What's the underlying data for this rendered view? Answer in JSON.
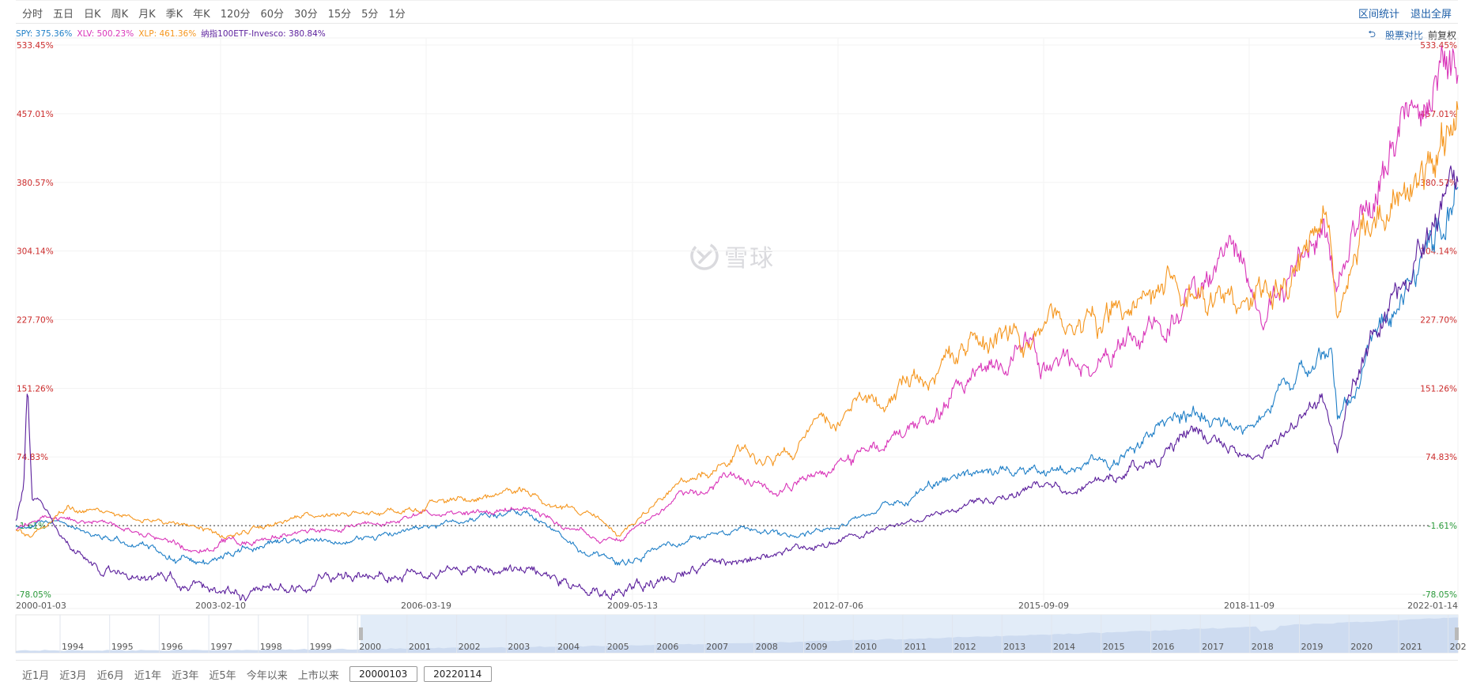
{
  "toolbar": {
    "periods": [
      "分时",
      "五日",
      "日K",
      "周K",
      "月K",
      "季K",
      "年K",
      "120分",
      "60分",
      "30分",
      "15分",
      "5分",
      "1分"
    ],
    "interval_stats": "区间统计",
    "exit_fullscreen": "退出全屏"
  },
  "legend": {
    "items": [
      {
        "label": "SPY: 375.36%",
        "color": "#1f7fc7"
      },
      {
        "label": "XLV: 500.23%",
        "color": "#d935b9"
      },
      {
        "label": "XLP: 461.36%",
        "color": "#f5961e"
      },
      {
        "label": "纳指100ETF-Invesco: 380.84%",
        "color": "#5b1f9c"
      }
    ],
    "compare": "股票对比",
    "adjust": "前复权"
  },
  "watermark": {
    "text": "雪球"
  },
  "bottom": {
    "ranges": [
      "近1月",
      "近3月",
      "近6月",
      "近1年",
      "近3年",
      "近5年",
      "今年以来",
      "上市以来"
    ],
    "start_date": "20000103",
    "end_date": "20220114"
  },
  "navigator": {
    "years": [
      "1994",
      "1995",
      "1996",
      "1997",
      "1998",
      "1999",
      "2000",
      "2001",
      "2002",
      "2003",
      "2004",
      "2005",
      "2006",
      "2007",
      "2008",
      "2009",
      "2010",
      "2011",
      "2012",
      "2013",
      "2014",
      "2015",
      "2016",
      "2017",
      "2018",
      "2019",
      "2020",
      "2021",
      "202"
    ],
    "selected_from": "2000",
    "selected_to": "2022"
  },
  "colors": {
    "positive": "#cc2b2b",
    "negative": "#2a9a3a",
    "baseline": "#333333"
  },
  "chart_data": {
    "type": "line",
    "title": "",
    "xlabel": "",
    "ylabel": "",
    "x_tick_labels": [
      "2000-01-03",
      "2003-02-10",
      "2006-03-19",
      "2009-05-13",
      "2012-07-06",
      "2015-09-09",
      "2018-11-09",
      "2022-01-14"
    ],
    "x_range": [
      "2000-01-03",
      "2022-01-14"
    ],
    "y_tick_labels": [
      "533.45%",
      "457.01%",
      "380.57%",
      "304.14%",
      "227.70%",
      "151.26%",
      "74.83%",
      "-1.61%",
      "-78.05%"
    ],
    "y_ticks": [
      533.45,
      457.01,
      380.57,
      304.14,
      227.7,
      151.26,
      74.83,
      -1.61,
      -78.05
    ],
    "ylim": [
      -78.05,
      533.45
    ],
    "baseline": -1.61,
    "baseline_label": "-1.61%",
    "grid": true,
    "series": [
      {
        "name": "SPY",
        "final": 375.36,
        "color": "#1f7fc7",
        "x": [
          2000.0,
          2000.7,
          2001.7,
          2002.8,
          2003.2,
          2004.0,
          2005.0,
          2006.0,
          2007.0,
          2007.8,
          2008.3,
          2008.8,
          2009.2,
          2010.0,
          2011.3,
          2011.7,
          2012.5,
          2013.5,
          2014.5,
          2015.6,
          2016.1,
          2017.0,
          2018.0,
          2018.9,
          2019.5,
          2020.1,
          2020.2,
          2020.6,
          2021.0,
          2021.6,
          2022.04
        ],
        "y": [
          -1,
          2,
          -20,
          -45,
          -35,
          -22,
          -18,
          -8,
          8,
          15,
          -10,
          -40,
          -48,
          -22,
          -5,
          -18,
          -2,
          25,
          55,
          62,
          55,
          80,
          125,
          110,
          150,
          190,
          110,
          170,
          230,
          320,
          375
        ]
      },
      {
        "name": "XLV",
        "final": 500.23,
        "color": "#d935b9",
        "x": [
          2000.0,
          2000.5,
          2001.0,
          2002.0,
          2002.8,
          2003.3,
          2004.5,
          2005.5,
          2006.5,
          2007.8,
          2008.3,
          2008.8,
          2009.2,
          2010.0,
          2011.0,
          2011.8,
          2012.5,
          2013.5,
          2014.5,
          2015.5,
          2015.8,
          2016.5,
          2017.0,
          2018.0,
          2018.5,
          2019.0,
          2019.5,
          2020.0,
          2020.2,
          2020.5,
          2021.0,
          2021.5,
          2021.8,
          2022.04
        ],
        "y": [
          -5,
          8,
          5,
          -10,
          -30,
          -20,
          -8,
          2,
          12,
          18,
          0,
          -15,
          -20,
          20,
          50,
          40,
          60,
          100,
          150,
          200,
          165,
          175,
          200,
          255,
          300,
          245,
          270,
          350,
          270,
          330,
          400,
          480,
          530,
          500
        ]
      },
      {
        "name": "XLP",
        "final": 461.36,
        "color": "#f5961e",
        "x": [
          2000.0,
          2000.2,
          2000.8,
          2001.5,
          2002.5,
          2003.2,
          2004.5,
          2006.0,
          2007.8,
          2008.3,
          2008.8,
          2009.2,
          2010.0,
          2011.0,
          2011.8,
          2012.5,
          2013.5,
          2014.5,
          2015.5,
          2016.5,
          2017.0,
          2018.0,
          2018.6,
          2019.0,
          2019.5,
          2020.0,
          2020.2,
          2020.6,
          2021.0,
          2021.6,
          2022.04
        ],
        "y": [
          -5,
          -15,
          20,
          10,
          0,
          -12,
          8,
          18,
          38,
          20,
          8,
          -10,
          35,
          80,
          80,
          110,
          150,
          190,
          210,
          230,
          245,
          270,
          255,
          245,
          270,
          350,
          230,
          320,
          350,
          390,
          461
        ]
      },
      {
        "name": "纳指100ETF-Invesco",
        "final": 380.84,
        "color": "#5b1f9c",
        "x": [
          2000.0,
          2000.12,
          2000.18,
          2000.25,
          2000.5,
          2000.8,
          2001.3,
          2002.0,
          2002.8,
          2003.2,
          2004.5,
          2006.0,
          2007.8,
          2008.3,
          2008.8,
          2009.2,
          2010.0,
          2011.0,
          2012.5,
          2013.5,
          2014.5,
          2015.6,
          2016.1,
          2017.0,
          2018.0,
          2018.9,
          2019.5,
          2020.0,
          2020.2,
          2020.6,
          2021.0,
          2021.8,
          2022.04
        ],
        "y": [
          5,
          40,
          155,
          30,
          10,
          -25,
          -55,
          -60,
          -75,
          -78,
          -62,
          -55,
          -45,
          -62,
          -75,
          -78,
          -60,
          -45,
          -20,
          0,
          20,
          45,
          35,
          60,
          100,
          75,
          110,
          140,
          95,
          180,
          240,
          360,
          380
        ]
      }
    ]
  }
}
